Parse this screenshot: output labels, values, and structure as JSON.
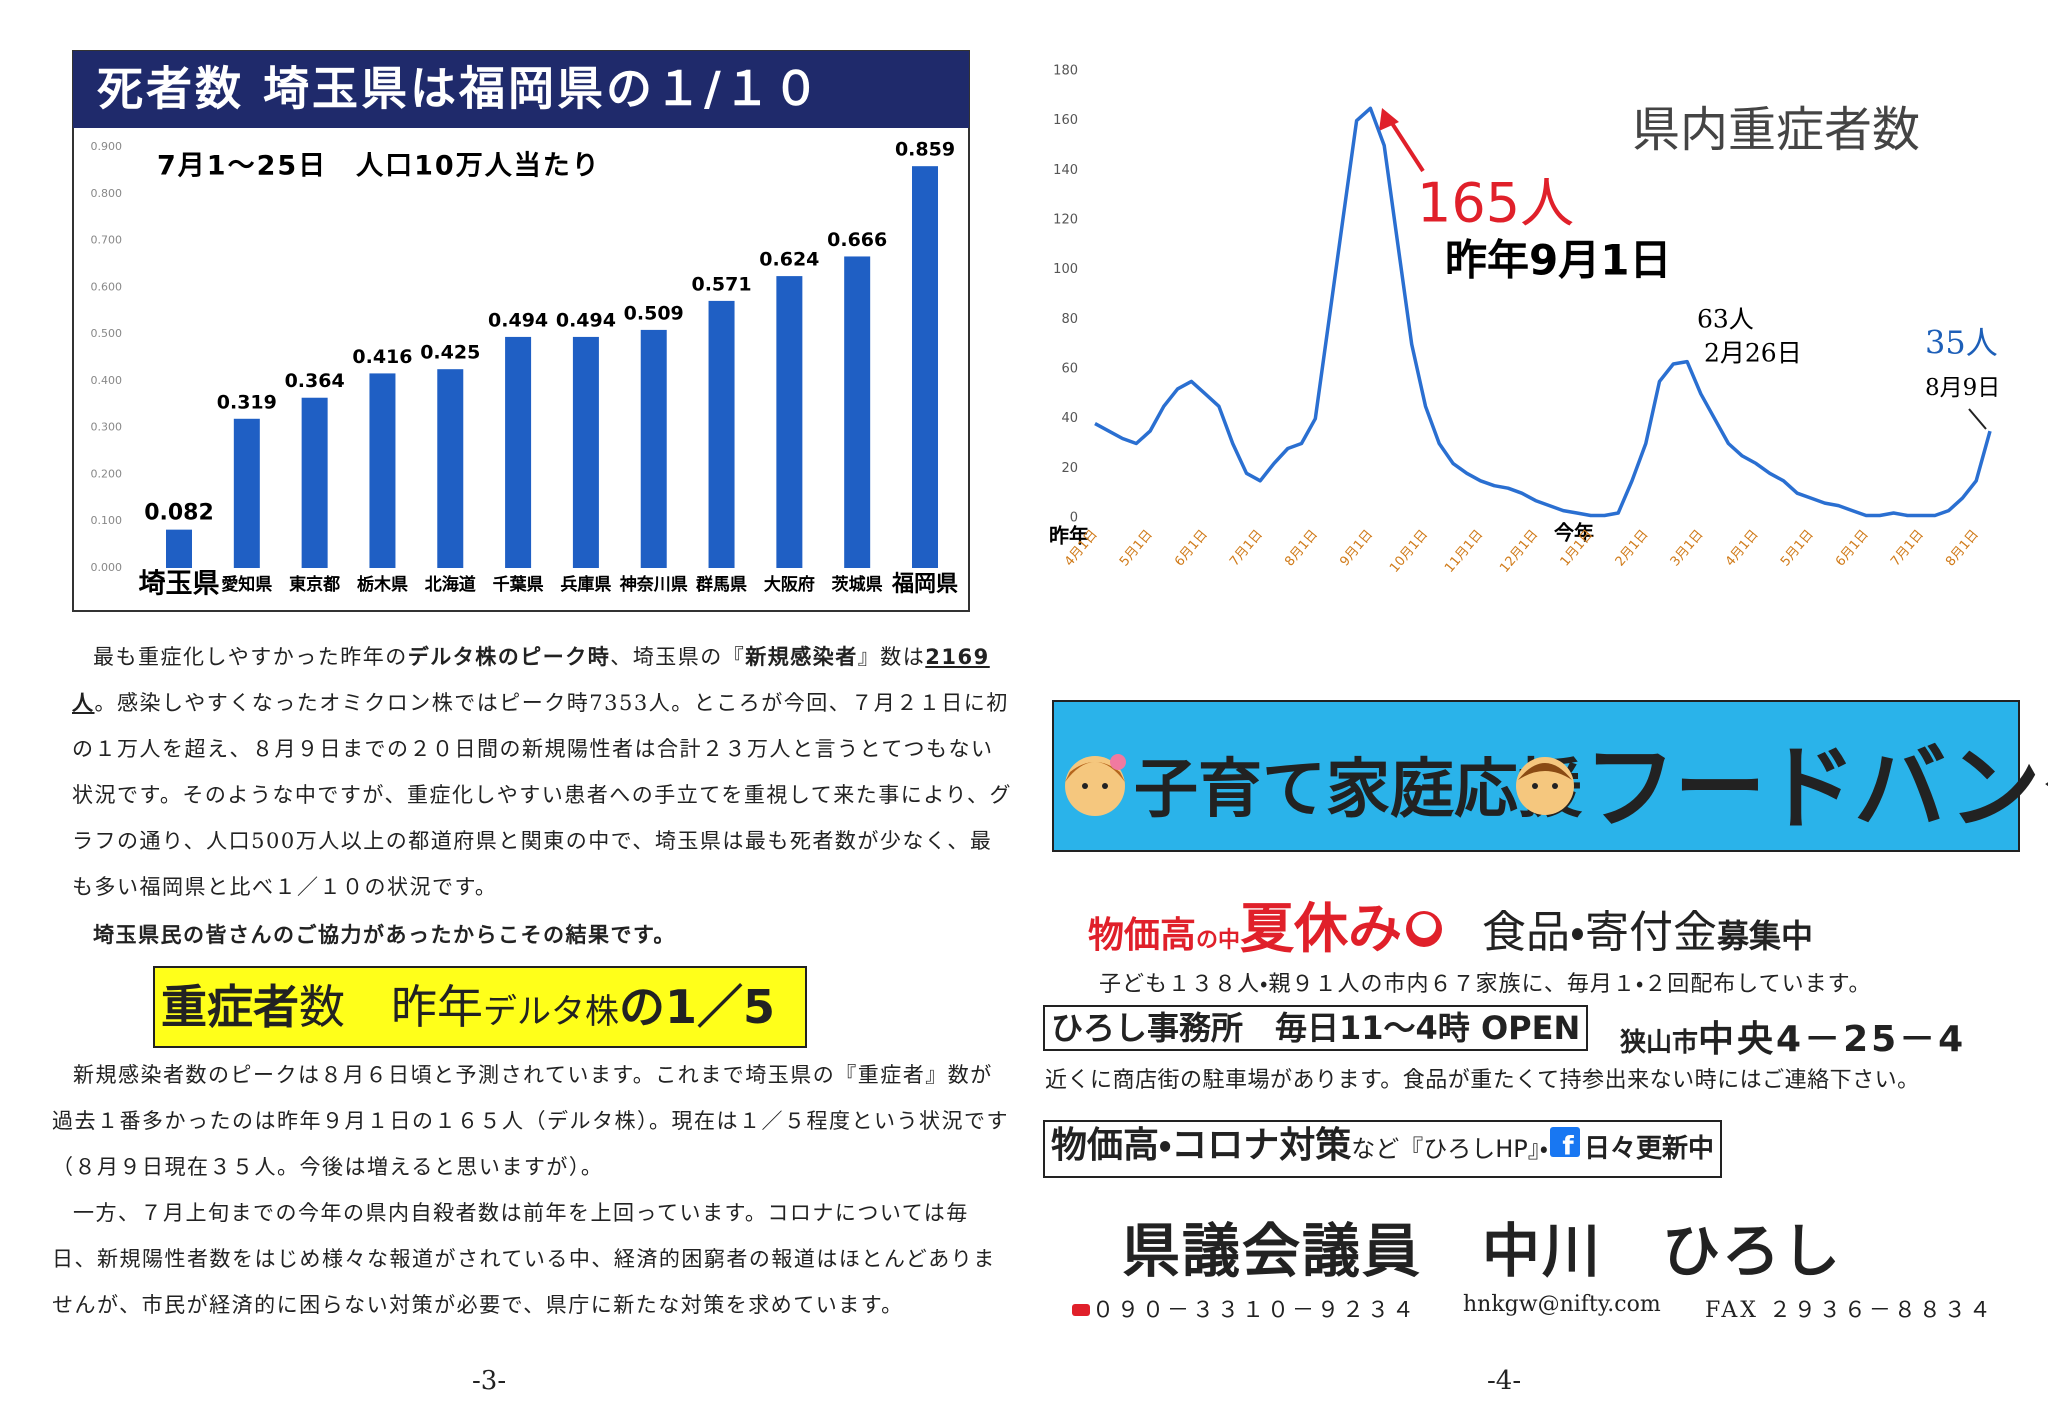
{
  "chart_data": [
    {
      "type": "bar",
      "title": "死者数 埼玉県は福岡県の１/１０",
      "subtitle": "7月1～25日　人口10万人当たり",
      "categories": [
        "埼玉県",
        "愛知県",
        "東京都",
        "栃木県",
        "北海道",
        "千葉県",
        "兵庫県",
        "神奈川県",
        "群馬県",
        "大阪府",
        "茨城県",
        "福岡県"
      ],
      "values": [
        0.082,
        0.319,
        0.364,
        0.416,
        0.425,
        0.494,
        0.494,
        0.509,
        0.571,
        0.624,
        0.666,
        0.859
      ],
      "color": "#1f5fc4",
      "ylim": [
        0,
        0.9
      ],
      "yticks": [
        {
          "value": 0,
          "label": "0.000"
        },
        {
          "value": 0.1,
          "label": "0.100"
        },
        {
          "value": 0.2,
          "label": "0.200"
        },
        {
          "value": 0.3,
          "label": "0.300"
        },
        {
          "value": 0.4,
          "label": "0.400"
        },
        {
          "value": 0.5,
          "label": "0.500"
        },
        {
          "value": 0.6,
          "label": "0.600"
        },
        {
          "value": 0.7,
          "label": "0.700"
        },
        {
          "value": 0.8,
          "label": "0.800"
        },
        {
          "value": 0.9,
          "label": "0.900"
        }
      ],
      "grid": false
    },
    {
      "type": "line",
      "title": "県内重症者数",
      "categories": [
        "4月1日",
        null,
        null,
        null,
        "5月1日",
        null,
        null,
        null,
        "6月1日",
        null,
        null,
        null,
        "7月1日",
        null,
        null,
        null,
        "8月1日",
        null,
        null,
        null,
        "9月1日",
        null,
        null,
        null,
        "10月1日",
        null,
        null,
        null,
        "11月1日",
        null,
        null,
        null,
        "12月1日",
        null,
        null,
        null,
        "1月1日",
        null,
        null,
        null,
        "2月1日",
        null,
        null,
        null,
        "3月1日",
        null,
        null,
        null,
        "4月1日",
        null,
        null,
        null,
        "5月1日",
        null,
        null,
        null,
        "6月1日",
        null,
        null,
        null,
        "7月1日",
        null,
        null,
        null,
        "8月1日",
        null
      ],
      "values": [
        38,
        35,
        32,
        30,
        35,
        45,
        52,
        55,
        50,
        45,
        30,
        18,
        15,
        22,
        28,
        30,
        40,
        80,
        120,
        160,
        165,
        150,
        110,
        70,
        45,
        30,
        22,
        18,
        15,
        13,
        12,
        10,
        7,
        5,
        3,
        2,
        1,
        1,
        2,
        15,
        30,
        55,
        62,
        63,
        50,
        40,
        30,
        25,
        22,
        18,
        15,
        10,
        8,
        6,
        5,
        3,
        1,
        1,
        2,
        1,
        1,
        1,
        3,
        8,
        15,
        35
      ],
      "color": "#2a6fd1",
      "ylim": [
        0,
        180
      ],
      "yticks": [
        0,
        20,
        40,
        60,
        80,
        100,
        120,
        140,
        160,
        180
      ],
      "grid": false,
      "year_labels": [
        "昨年",
        "今年"
      ],
      "annotations": [
        "165人",
        "昨年9月1日",
        "63人",
        "2月26日",
        "35人",
        "8月9日"
      ]
    }
  ],
  "page3": {
    "p1": [
      "最も重症化しやすかった昨年の",
      "デルタ株のピーク時",
      "、埼玉県の『",
      "新規感染者",
      "』数は",
      "2169人",
      "。感染しやすくなったオミクロン株ではピーク時7353人。ところが今回、７月２１日に初の１万人を超え、８月９日までの２０日間の新規陽性者は合計２３万人と言うとてつもない状況です。そのような中ですが、重症化しやすい患者への手立てを重視して来た事により、グラフの通り、人口500万人以上の都道府県と関東の中で、埼玉県は最も死者数が少なく、最も多い福岡県と比べ１／１０の状況です。"
    ],
    "p2": "埼玉県民の皆さんのご協力があったからこその結果です。",
    "heading": [
      "重症者",
      "数　昨年",
      "デルタ株",
      "の1／5"
    ],
    "p3": "新規感染者数のピークは８月６日頃と予測されています。これまで埼玉県の『重症者』数が過去１番多かったのは昨年９月１日の１６５人（デルタ株）。現在は１／５程度という状況です（８月９日現在３５人。今後は増えると思いますが）。",
    "p4": "一方、７月上旬までの今年の県内自殺者数は前年を上回っています。コロナについては毎日、新規陽性者数をはじめ様々な報道がされている中、経済的困窮者の報道はほとんどありませんが、市民が経済的に困らない対策が必要で、県庁に新たな対策を求めています。",
    "page_number": "-3-"
  },
  "page4": {
    "banner": [
      "子育て家庭応援",
      "フードバンク"
    ],
    "headline": [
      "物価高",
      "の中",
      "夏休み",
      "食品・寄付金",
      "募集中"
    ],
    "line1": "子ども１３８人・親９１人の市内６７家族に、毎月１・２回配布しています。",
    "office": "ひろし事務所　毎日11～4時 OPEN",
    "address": [
      "狭山市",
      "中央4－25－4"
    ],
    "line2": "近くに商店街の駐車場があります。食品が重たくて持参出来ない時にはご連絡下さい。",
    "hp": [
      "物価高・コロナ対策",
      "など『ひろしHP』・",
      "日々更新中"
    ],
    "name": "県議会議員　中川　ひろし",
    "phone": "０９０－３３１０－９２３４",
    "email": "hnkgw@nifty.com",
    "fax": "FAX ２９３６－８８３４",
    "page_number": "-4-"
  }
}
